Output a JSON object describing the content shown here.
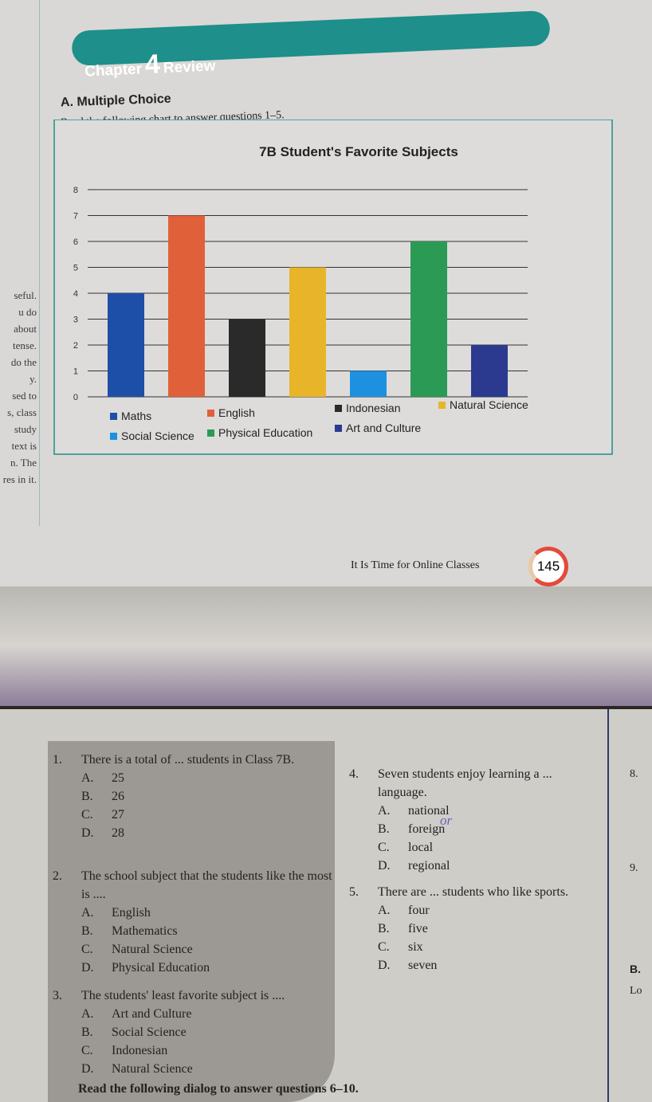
{
  "header": {
    "chapter_label": "Chapter",
    "chapter_number": "4",
    "review_label": "Review"
  },
  "section": {
    "title": "A. Multiple Choice",
    "instruction": "Read the following chart to answer questions 1–5."
  },
  "margin_text": [
    "seful.",
    "u do",
    "about",
    "tense.",
    "do the",
    "y.",
    "sed to",
    "s, class",
    "study",
    "",
    "text is",
    "n. The",
    "res in it."
  ],
  "chart_data": {
    "type": "bar",
    "title": "7B Student's Favorite Subjects",
    "categories": [
      "Maths",
      "English",
      "Indonesian",
      "Natural Science",
      "Social Science",
      "Physical Education",
      "Art and Culture"
    ],
    "values": [
      4,
      7,
      3,
      5,
      1,
      6,
      2
    ],
    "colors": [
      "#1d4fa8",
      "#e0603a",
      "#2a2a2a",
      "#e8b52a",
      "#1e90e0",
      "#2a9a55",
      "#2b3a8f"
    ],
    "yticks": [
      0,
      1,
      2,
      3,
      4,
      5,
      6,
      7,
      8
    ],
    "ylim": [
      0,
      8
    ],
    "grid": true,
    "legend": "bottom",
    "xlabel": "",
    "ylabel": ""
  },
  "footer": {
    "text": "It Is Time for Online Classes",
    "page": "145"
  },
  "questions": [
    {
      "n": "1.",
      "stem": "There is a total of ... students in Class 7B.",
      "options": [
        [
          "A.",
          "25"
        ],
        [
          "B.",
          "26"
        ],
        [
          "C.",
          "27"
        ],
        [
          "D.",
          "28"
        ]
      ]
    },
    {
      "n": "2.",
      "stem": "The school subject that the students like the most is ....",
      "options": [
        [
          "A.",
          "English"
        ],
        [
          "B.",
          "Mathematics"
        ],
        [
          "C.",
          "Natural Science"
        ],
        [
          "D.",
          "Physical Education"
        ]
      ]
    },
    {
      "n": "3.",
      "stem": "The students' least favorite subject is ....",
      "options": [
        [
          "A.",
          "Art and Culture"
        ],
        [
          "B.",
          "Social Science"
        ],
        [
          "C.",
          "Indonesian"
        ],
        [
          "D.",
          "Natural Science"
        ]
      ]
    },
    {
      "n": "4.",
      "stem": "Seven students enjoy learning a ... language.",
      "options": [
        [
          "A.",
          "national"
        ],
        [
          "B.",
          "foreign"
        ],
        [
          "C.",
          "local"
        ],
        [
          "D.",
          "regional"
        ]
      ]
    },
    {
      "n": "5.",
      "stem": "There are ... students who like sports.",
      "options": [
        [
          "A.",
          "four"
        ],
        [
          "B.",
          "five"
        ],
        [
          "C.",
          "six"
        ],
        [
          "D.",
          "seven"
        ]
      ]
    }
  ],
  "handwritten_note": "or",
  "right_column": [
    "8.",
    "9.",
    "B.",
    "Lo"
  ],
  "next_instruction": "Read the following dialog to answer questions 6–10."
}
